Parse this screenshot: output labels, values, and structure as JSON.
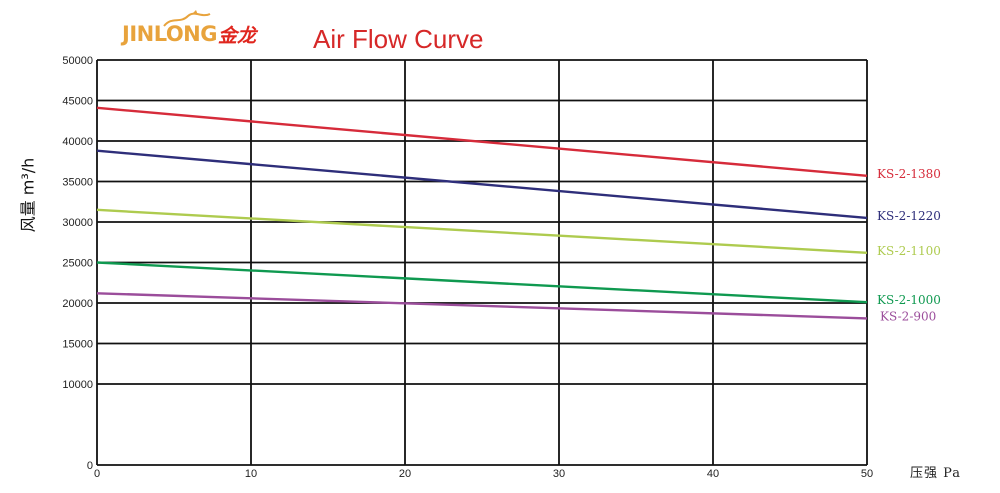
{
  "logo": {
    "text": "JINLONG",
    "cn": "金龙",
    "color": "#e8a33c",
    "cn_color": "#e0261e"
  },
  "title": {
    "text": "Air Flow Curve",
    "color": "#d62828"
  },
  "chart_data": {
    "type": "line",
    "title": "Air Flow Curve",
    "ylabel": "风量 m³/h",
    "xlabel": "压强 Pa",
    "xlim": [
      0,
      50
    ],
    "ylim": [
      0,
      50000
    ],
    "xticks": [
      0,
      10,
      20,
      30,
      40,
      50
    ],
    "yticks": [
      0,
      10000,
      15000,
      20000,
      25000,
      30000,
      35000,
      40000,
      45000,
      50000
    ],
    "grid": true,
    "legend": "inline-right",
    "series": [
      {
        "name": "KS-2-1380",
        "color": "#d62b3a",
        "x": [
          0,
          50
        ],
        "y": [
          44100,
          35700
        ]
      },
      {
        "name": "KS-2-1220",
        "color": "#2e2e7a",
        "x": [
          0,
          50
        ],
        "y": [
          38800,
          30500
        ]
      },
      {
        "name": "KS-2-1100",
        "color": "#aecb4f",
        "x": [
          0,
          50
        ],
        "y": [
          31500,
          26200
        ]
      },
      {
        "name": "KS-2-1000",
        "color": "#0f9950",
        "x": [
          0,
          50
        ],
        "y": [
          25000,
          20100
        ]
      },
      {
        "name": "KS-2-900",
        "color": "#9b4d9b",
        "x": [
          0,
          50
        ],
        "y": [
          21200,
          18100
        ]
      }
    ]
  }
}
